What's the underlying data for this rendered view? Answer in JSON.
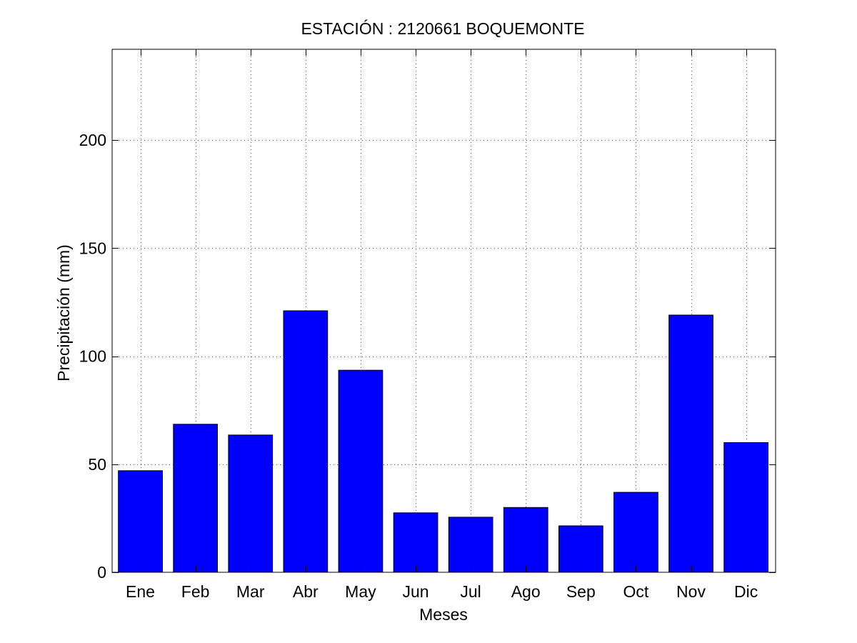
{
  "chart_data": {
    "type": "bar",
    "title": "ESTACIÓN :  2120661  BOQUEMONTE",
    "xlabel": "Meses",
    "ylabel": "Precipitación (mm)",
    "categories": [
      "Ene",
      "Feb",
      "Mar",
      "Abr",
      "May",
      "Jun",
      "Jul",
      "Ago",
      "Sep",
      "Oct",
      "Nov",
      "Dic"
    ],
    "values": [
      47,
      68.5,
      63.5,
      121,
      93.5,
      27.5,
      25.5,
      30,
      21.5,
      37,
      119,
      60
    ],
    "ylim": [
      0,
      242
    ],
    "yticks": [
      "0",
      "50",
      "100",
      "150",
      "200"
    ],
    "grid": true,
    "colors": {
      "bar": "#0000ff",
      "bar_edge": "#000000"
    }
  }
}
